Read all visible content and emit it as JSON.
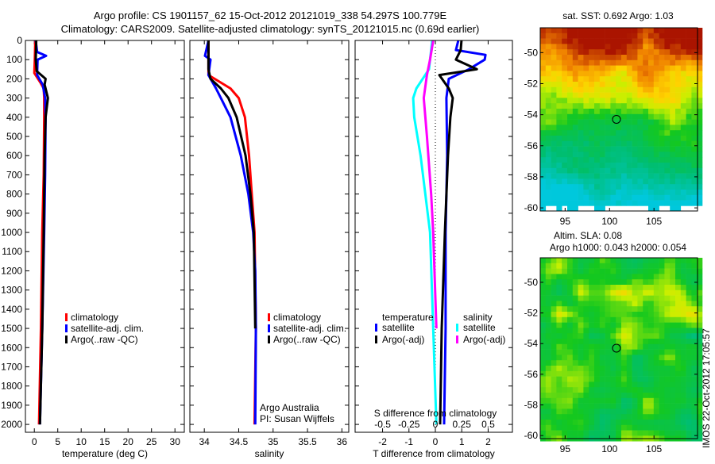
{
  "title_line1": "Argo profile: CS 1901157_62 15-Oct-2012 20121019_338 54.297S 100.779E",
  "title_line2": "Climatology: CARS2009. Satellite-adjusted climatology: synTS_20121015.nc (0.69d earlier)",
  "credit": "Argo Australia",
  "pi": "PI: Susan Wijffels",
  "imos_stamp": "IMOS 22-Oct-2012 17:05:57",
  "colors": {
    "climatology": "#ff0000",
    "satellite": "#0000ff",
    "argo": "#000000",
    "sal_satellite": "#00ffff",
    "sal_argo": "#ff00ff",
    "marker": "#000000"
  },
  "chart_data": [
    {
      "type": "line",
      "id": "temperature",
      "xlabel": "temperature (deg C)",
      "ylabel": "",
      "xlim": [
        -1.9,
        32
      ],
      "ylim": [
        2041,
        0
      ],
      "xticks": [
        0,
        5,
        10,
        15,
        20,
        25,
        30
      ],
      "yticks": [
        0,
        100,
        200,
        300,
        400,
        500,
        600,
        700,
        800,
        900,
        1000,
        1100,
        1200,
        1300,
        1400,
        1500,
        1600,
        1700,
        1800,
        1900,
        2000
      ],
      "legend": [
        "climatology",
        "satellite-adj. clim.",
        "Argo(..raw -QC)"
      ],
      "series": [
        {
          "name": "climatology",
          "color": "#ff0000",
          "depth": [
            0,
            100,
            170,
            220,
            250,
            300,
            400,
            700,
            1000,
            1500,
            2000
          ],
          "value": [
            0.2,
            0.1,
            0.0,
            1.3,
            2.0,
            2.1,
            2.1,
            2.0,
            1.7,
            1.4,
            1.0
          ]
        },
        {
          "name": "satellite-adj. clim.",
          "color": "#0000ff",
          "depth": [
            0,
            60,
            80,
            100,
            180,
            230,
            300,
            400,
            700,
            1000,
            1500,
            2000
          ],
          "value": [
            0.3,
            0.6,
            2.5,
            0.7,
            0.6,
            1.8,
            2.3,
            2.4,
            2.3,
            2.1,
            1.7,
            1.2
          ]
        },
        {
          "name": "Argo(..raw -QC)",
          "color": "#000000",
          "depth": [
            0,
            100,
            160,
            200,
            230,
            300,
            400,
            600,
            1000,
            1500,
            2000
          ],
          "value": [
            0.4,
            0.3,
            0.5,
            2.4,
            2.2,
            2.9,
            2.4,
            2.2,
            2.0,
            1.7,
            1.2
          ]
        }
      ]
    },
    {
      "type": "line",
      "id": "salinity",
      "xlabel": "salinity",
      "ylabel": "",
      "xlim": [
        33.79,
        36.1
      ],
      "ylim": [
        2041,
        0
      ],
      "xticks": [
        34,
        34.5,
        35,
        35.5,
        36
      ],
      "legend": [
        "climatology",
        "satellite-adj. clim.",
        "Argo(..raw -QC)"
      ],
      "series": [
        {
          "name": "climatology",
          "color": "#ff0000",
          "depth": [
            0,
            180,
            250,
            300,
            400,
            600,
            800,
            1000,
            1500,
            2000
          ],
          "value": [
            34.06,
            34.06,
            34.38,
            34.5,
            34.59,
            34.65,
            34.69,
            34.73,
            34.75,
            34.73
          ]
        },
        {
          "name": "satellite-adj. clim.",
          "color": "#0000ff",
          "depth": [
            0,
            80,
            100,
            180,
            250,
            300,
            400,
            600,
            800,
            1000,
            1200,
            1500,
            2000
          ],
          "value": [
            34.06,
            34.01,
            34.09,
            34.06,
            34.17,
            34.24,
            34.38,
            34.53,
            34.64,
            34.71,
            34.74,
            34.75,
            34.74
          ]
        },
        {
          "name": "Argo(..raw -QC)",
          "color": "#000000",
          "depth": [
            0,
            150,
            200,
            250,
            300,
            400,
            600,
            800,
            1000,
            1500
          ],
          "value": [
            34.06,
            34.06,
            34.09,
            34.24,
            34.35,
            34.47,
            34.6,
            34.67,
            34.72,
            34.74
          ]
        }
      ]
    },
    {
      "type": "line",
      "id": "difference",
      "xlabel": "T difference from climatology",
      "x2label": "S difference from climatology",
      "xlim": [
        -3.04,
        2.92
      ],
      "x2lim": [
        -0.76,
        0.73
      ],
      "ylim": [
        2041,
        0
      ],
      "xticks": [
        -2,
        -1,
        0,
        1,
        2
      ],
      "x2ticks": [
        "-0.5",
        "-0.25",
        "0",
        "0.25",
        "0.5"
      ],
      "legend_temperature_title": "temperature",
      "legend_salinity_title": "salinity",
      "legend": [
        "satellite",
        "Argo(-adj)",
        "satellite",
        "Argo(-adj)"
      ],
      "series": [
        {
          "name": "T satellite",
          "axis": "T",
          "color": "#0000ff",
          "depth": [
            0,
            50,
            75,
            100,
            150,
            200,
            300,
            600,
            1000,
            1500,
            2000
          ],
          "value": [
            0.87,
            0.78,
            1.9,
            1.87,
            1.27,
            0.51,
            0.42,
            0.45,
            0.39,
            0.39,
            0.33
          ]
        },
        {
          "name": "T Argo(-adj)",
          "axis": "T",
          "color": "#000000",
          "depth": [
            0,
            50,
            100,
            150,
            180,
            250,
            300,
            400,
            600,
            1000,
            1500,
            2000
          ],
          "value": [
            0.99,
            0.96,
            0.78,
            1.57,
            0.15,
            0.51,
            0.66,
            0.57,
            0.48,
            0.36,
            0.24,
            0.18
          ]
        },
        {
          "name": "S satellite",
          "axis": "S",
          "color": "#00ffff",
          "depth": [
            0,
            150,
            250,
            300,
            400,
            600,
            1000,
            1500,
            2000
          ],
          "value": [
            -0.03,
            -0.06,
            -0.18,
            -0.21,
            -0.2,
            -0.14,
            -0.05,
            -0.02,
            0.01
          ]
        },
        {
          "name": "S Argo(-adj)",
          "axis": "S",
          "color": "#ff00ff",
          "depth": [
            0,
            100,
            180,
            300,
            500,
            800,
            1000,
            1500
          ],
          "value": [
            -0.02,
            -0.05,
            -0.08,
            -0.11,
            -0.08,
            -0.04,
            -0.02,
            0.01
          ]
        }
      ]
    },
    {
      "type": "heatmap",
      "id": "sst_map",
      "title": "sat. SST: 0.692 Argo: 1.03",
      "xlim": [
        92.2,
        109.9
      ],
      "ylim": [
        -60.2,
        -48.4
      ],
      "xticks": [
        95,
        100,
        105
      ],
      "yticks": [
        -50,
        -52,
        -54,
        -56,
        -58,
        -60
      ],
      "marker": {
        "lon": 100.779,
        "lat": -54.297
      }
    },
    {
      "type": "heatmap",
      "id": "sla_map",
      "title": "Altim. SLA: 0.08",
      "subtitle": "Argo h1000: 0.043 h2000: 0.054",
      "xlim": [
        92.2,
        109.9
      ],
      "ylim": [
        -60.2,
        -48.4
      ],
      "xticks": [
        95,
        100,
        105
      ],
      "yticks": [
        -50,
        -52,
        -54,
        -56,
        -58,
        -60
      ],
      "marker": {
        "lon": 100.779,
        "lat": -54.297
      }
    }
  ]
}
